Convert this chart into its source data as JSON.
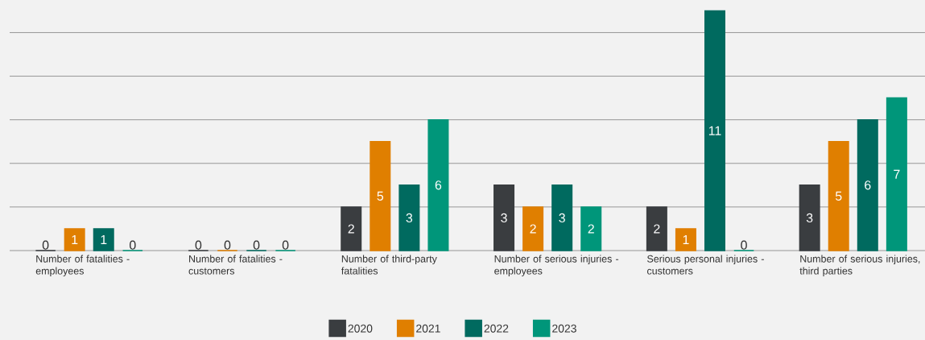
{
  "chart_data": {
    "type": "bar",
    "categories": [
      "Number of fatalities - employees",
      "Number of fatalities - customers",
      "Number of third-party fatalities",
      "Number of serious injuries - employees",
      "Serious personal injuries - customers",
      "Number of serious injuries, third parties"
    ],
    "series": [
      {
        "name": "2020",
        "color": "#3a3d40",
        "values": [
          0,
          0,
          2,
          3,
          2,
          3
        ]
      },
      {
        "name": "2021",
        "color": "#e07f00",
        "values": [
          1,
          0,
          5,
          2,
          1,
          5
        ]
      },
      {
        "name": "2022",
        "color": "#006a5f",
        "values": [
          1,
          0,
          3,
          3,
          11,
          6
        ]
      },
      {
        "name": "2023",
        "color": "#00967a",
        "values": [
          0,
          0,
          6,
          2,
          0,
          7
        ]
      }
    ],
    "yticks": [
      {
        "value": 0,
        "label": null
      },
      {
        "value": 2,
        "label": null
      },
      {
        "value": 4,
        "label": null
      },
      {
        "value": 6,
        "label": null
      },
      {
        "value": 8,
        "label": null
      },
      {
        "value": 10,
        "label": null
      }
    ],
    "tick_labels": "x",
    "grid": "y",
    "data_labels": true,
    "legend": "bottom"
  }
}
